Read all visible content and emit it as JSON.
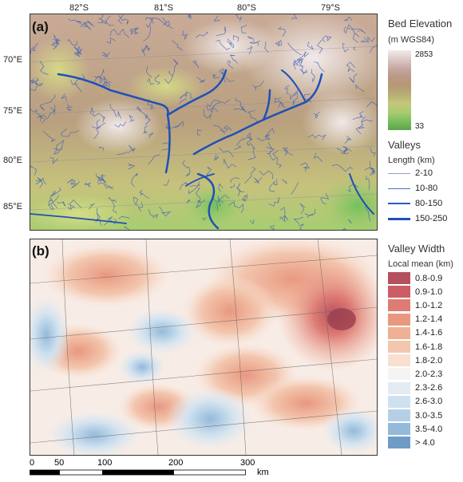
{
  "panel_a": {
    "tag": "(a)",
    "lon_ticks": [
      "82°S",
      "81°S",
      "80°S",
      "79°S"
    ],
    "lat_ticks": [
      "70°E",
      "75°E",
      "80°E",
      "85°E"
    ]
  },
  "panel_b": {
    "tag": "(b)"
  },
  "legend_elev": {
    "title": "Bed Elevation",
    "unit": "(m WGS84)",
    "max": "2853",
    "min": "33",
    "colors": [
      "#f2ece8",
      "#dcc9c9",
      "#c8a9a2",
      "#b99886",
      "#b59a74",
      "#b8ae74",
      "#c4c67a",
      "#a9cc70",
      "#7bbd5d",
      "#5aa54b"
    ]
  },
  "legend_valleys": {
    "title": "Valleys",
    "sub": "Length (km)",
    "items": [
      {
        "label": "2-10",
        "color": "#8ea3c8",
        "w": 0.8
      },
      {
        "label": "10-80",
        "color": "#4a72c0",
        "w": 1.3
      },
      {
        "label": "80-150",
        "color": "#2a5bc0",
        "w": 2
      },
      {
        "label": "150-250",
        "color": "#1f50b8",
        "w": 3.2
      }
    ]
  },
  "legend_width": {
    "title": "Valley Width",
    "sub": "Local mean (km)",
    "items": [
      {
        "label": "0.8-0.9",
        "color": "#b4505e"
      },
      {
        "label": "0.9-1.0",
        "color": "#cc5d66"
      },
      {
        "label": "1.0-1.2",
        "color": "#de7b74"
      },
      {
        "label": "1.2-1.4",
        "color": "#e99880"
      },
      {
        "label": "1.4-1.6",
        "color": "#efb094"
      },
      {
        "label": "1.6-1.8",
        "color": "#f3c6ae"
      },
      {
        "label": "1.8-2.0",
        "color": "#f8dfd0"
      },
      {
        "label": "2.0-2.3",
        "color": "#f6f3f3"
      },
      {
        "label": "2.3-2.6",
        "color": "#e3ecf3"
      },
      {
        "label": "2.6-3.0",
        "color": "#cfe1ef"
      },
      {
        "label": "3.0-3.5",
        "color": "#b5d0e6"
      },
      {
        "label": "3.5-4.0",
        "color": "#94bad9"
      },
      {
        "label": "> 4.0",
        "color": "#6f9cc6"
      }
    ]
  },
  "scalebar": {
    "ticks": [
      "0",
      "50",
      "100",
      "200",
      "300"
    ],
    "unit": "km"
  }
}
